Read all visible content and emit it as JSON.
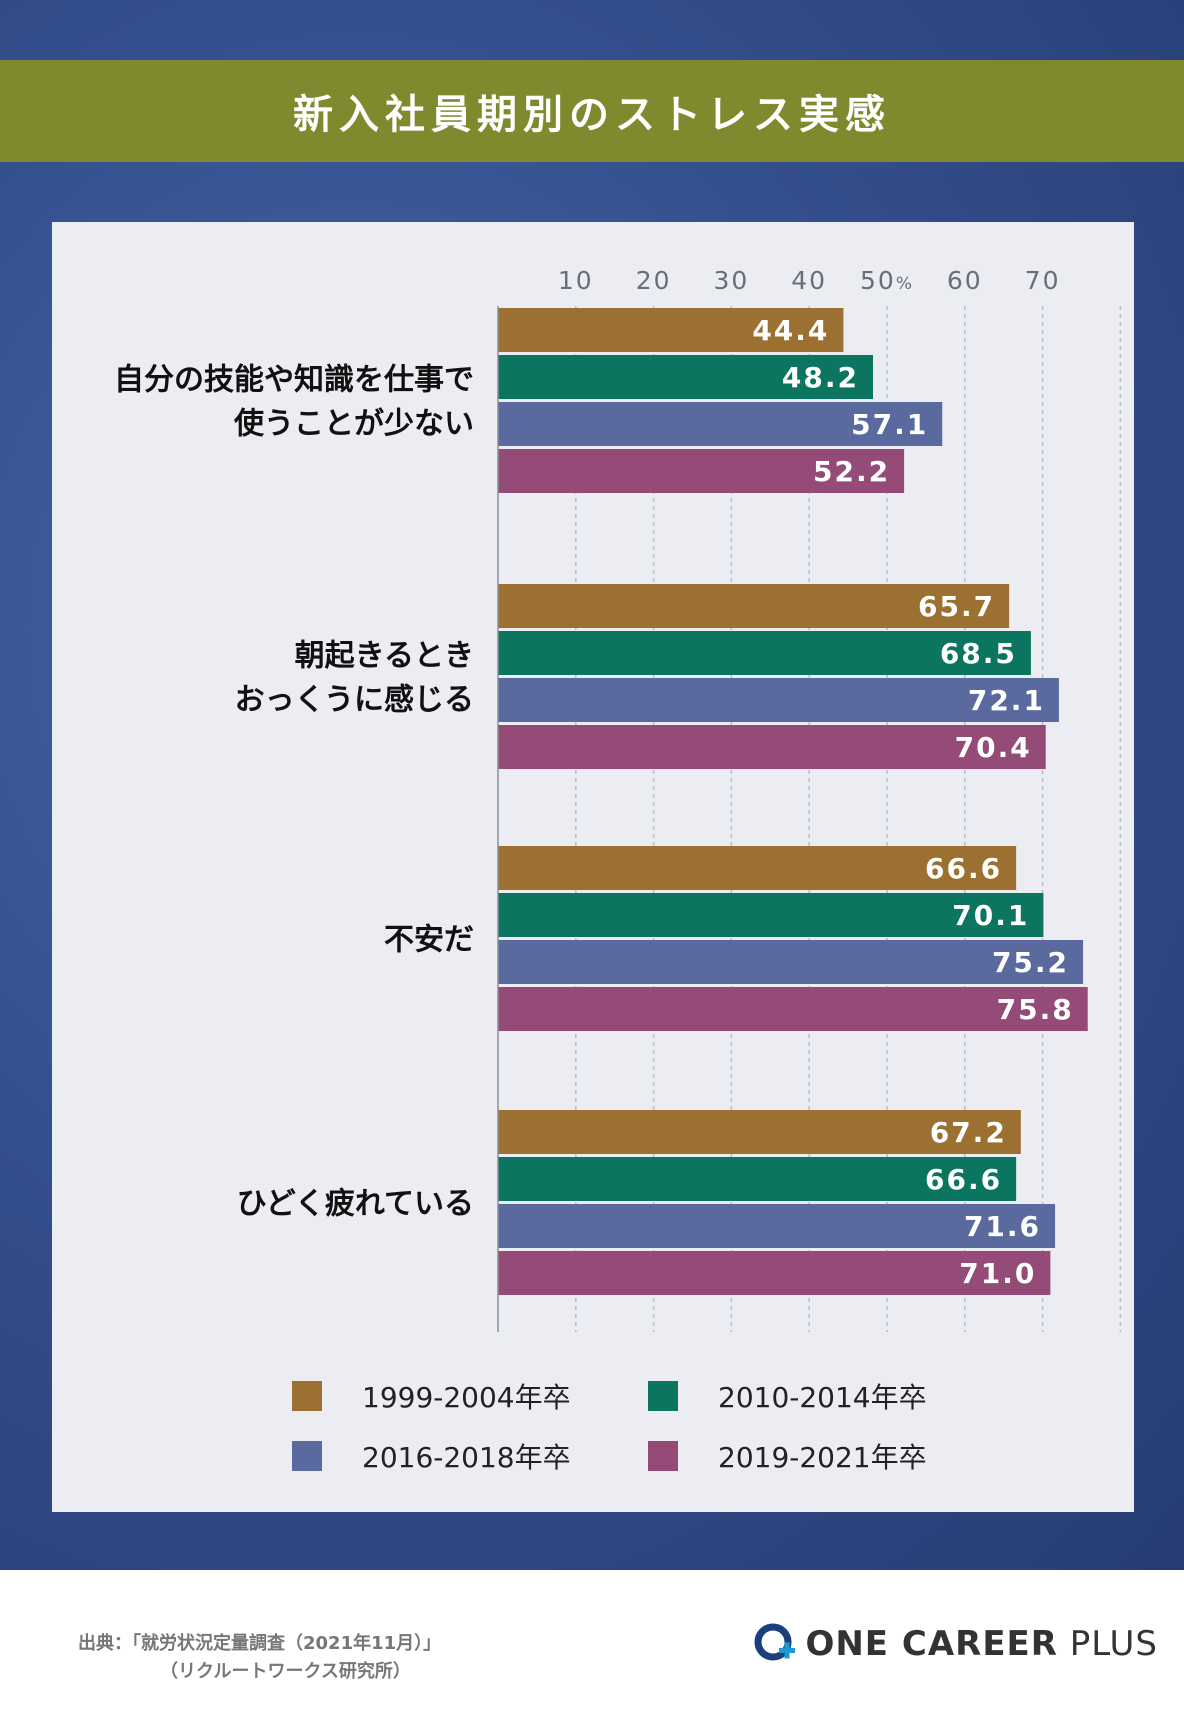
{
  "title": "新入社員期別のストレス実感",
  "colors": {
    "s1": "#9b7030",
    "s2": "#0b7560",
    "s3": "#5a6a9e",
    "s4": "#944b77",
    "grid": "#b8bccb",
    "axis_text": "#6a6e78",
    "bar_label": "#ffffff",
    "category_text": "#111111"
  },
  "chart_data": {
    "type": "bar",
    "orientation": "horizontal",
    "title": "新入社員期別のストレス実感",
    "x_ticks": [
      "10",
      "20",
      "30",
      "40",
      "50",
      "60",
      "70"
    ],
    "x_tick_values": [
      10,
      20,
      30,
      40,
      50,
      60,
      70
    ],
    "x_unit_label": "%",
    "xlim": [
      0,
      78
    ],
    "grid": true,
    "categories": [
      {
        "lines": [
          "自分の技能や知識を仕事で",
          "使うことが少ない"
        ]
      },
      {
        "lines": [
          "朝起きるとき",
          "おっくうに感じる"
        ]
      },
      {
        "lines": [
          "不安だ"
        ]
      },
      {
        "lines": [
          "ひどく疲れている"
        ]
      }
    ],
    "series": [
      {
        "name": "1999-2004年卒",
        "values": [
          44.4,
          65.7,
          66.6,
          67.2
        ],
        "labels": [
          "44.4",
          "65.7",
          "66.6",
          "67.2"
        ]
      },
      {
        "name": "2010-2014年卒",
        "values": [
          48.2,
          68.5,
          70.1,
          66.6
        ],
        "labels": [
          "48.2",
          "68.5",
          "70.1",
          "66.6"
        ]
      },
      {
        "name": "2016-2018年卒",
        "values": [
          57.1,
          72.1,
          75.2,
          71.6
        ],
        "labels": [
          "57.1",
          "72.1",
          "75.2",
          "71.6"
        ]
      },
      {
        "name": "2019-2021年卒",
        "values": [
          52.2,
          70.4,
          75.8,
          71.0
        ],
        "labels": [
          "52.2",
          "70.4",
          "75.8",
          "71.0"
        ]
      }
    ],
    "legend_position": "bottom"
  },
  "source": {
    "line1": "出典：「就労状況定量調査（2021年11月）」",
    "line2": "（リクルートワークス研究所）"
  },
  "logo": {
    "word1": "ONE CAREER",
    "word2": "PLUS"
  }
}
